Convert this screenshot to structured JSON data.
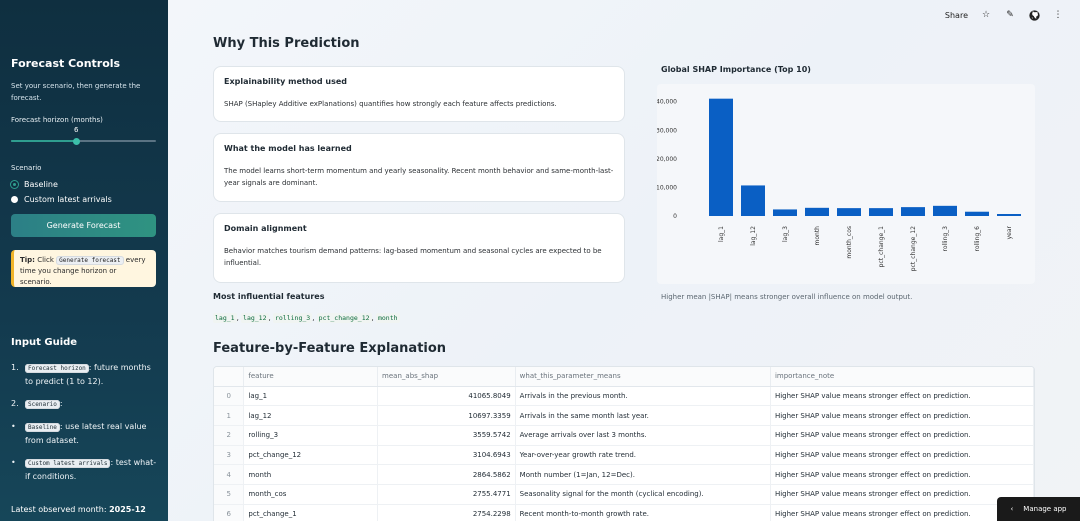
{
  "sidebar": {
    "title": "Forecast Controls",
    "subtitle": "Set your scenario, then generate the forecast.",
    "horizon_label": "Forecast horizon (months)",
    "horizon_value": "6",
    "horizon_min": 1,
    "horizon_max": 12,
    "scenario_label": "Scenario",
    "scenario_options": [
      "Baseline",
      "Custom latest arrivals"
    ],
    "generate_button": "Generate Forecast",
    "tip": {
      "prefix": "Tip:",
      "pre": " Click ",
      "code": "Generate forecast",
      "post": " every time you change horizon or scenario."
    },
    "guide_title": "Input Guide",
    "guide": [
      {
        "num": "1.",
        "code": "Forecast horizon",
        "text": ": future months to predict (1 to 12)."
      },
      {
        "num": "2.",
        "code": "Scenario",
        "text": ":"
      },
      {
        "num": "•",
        "code": "Baseline",
        "text": ": use latest real value from dataset."
      },
      {
        "num": "•",
        "code": "Custom latest arrivals",
        "text": ": test what-if conditions."
      }
    ],
    "latest_label": "Latest observed month:",
    "latest_value": "2025-12"
  },
  "topbar": {
    "share": "Share"
  },
  "main": {
    "section_title": "Why This Prediction",
    "cards": [
      {
        "title": "Explainability method used",
        "body": "SHAP (SHapley Additive exPlanations) quantifies how strongly each feature affects predictions."
      },
      {
        "title": "What the model has learned",
        "body": "The model learns short-term momentum and yearly seasonality. Recent month behavior and same-month-last-year signals are dominant."
      },
      {
        "title": "Domain alignment",
        "body": "Behavior matches tourism demand patterns: lag-based momentum and seasonal cycles are expected to be influential."
      }
    ],
    "most_influential_title": "Most influential features",
    "most_influential": [
      "lag_1",
      "lag_12",
      "rolling_3",
      "pct_change_12",
      "month"
    ],
    "chart_title": "Global SHAP Importance (Top 10)",
    "chart_caption": "Higher mean |SHAP| means stronger overall influence on model output.",
    "table_title": "Feature-by-Feature Explanation",
    "table": {
      "columns": [
        "",
        "feature",
        "mean_abs_shap",
        "what_this_parameter_means",
        "importance_note"
      ],
      "rows": [
        [
          "0",
          "lag_1",
          "41065.8049",
          "Arrivals in the previous month.",
          "Higher SHAP value means stronger effect on prediction."
        ],
        [
          "1",
          "lag_12",
          "10697.3359",
          "Arrivals in the same month last year.",
          "Higher SHAP value means stronger effect on prediction."
        ],
        [
          "2",
          "rolling_3",
          "3559.5742",
          "Average arrivals over last 3 months.",
          "Higher SHAP value means stronger effect on prediction."
        ],
        [
          "3",
          "pct_change_12",
          "3104.6943",
          "Year-over-year growth rate trend.",
          "Higher SHAP value means stronger effect on prediction."
        ],
        [
          "4",
          "month",
          "2864.5862",
          "Month number (1=Jan, 12=Dec).",
          "Higher SHAP value means stronger effect on prediction."
        ],
        [
          "5",
          "month_cos",
          "2755.4771",
          "Seasonality signal for the month (cyclical encoding).",
          "Higher SHAP value means stronger effect on prediction."
        ],
        [
          "6",
          "pct_change_1",
          "2754.2298",
          "Recent month-to-month growth rate.",
          "Higher SHAP value means stronger effect on prediction."
        ]
      ]
    }
  },
  "chart_data": {
    "type": "bar",
    "categories": [
      "lag_1",
      "lag_12",
      "lag_3",
      "month",
      "month_cos",
      "pct_change_1",
      "pct_change_12",
      "rolling_3",
      "rolling_6",
      "year"
    ],
    "values": [
      41065.8,
      10697.3,
      2300,
      2864.6,
      2755.5,
      2754.2,
      3104.7,
      3559.6,
      1500,
      700
    ],
    "yticks": [
      "0",
      "10,000",
      "20,000",
      "30,000",
      "40,000"
    ],
    "ylim": [
      0,
      42000
    ],
    "bar_color": "#0a5fc4",
    "title": "",
    "xlabel": "",
    "ylabel": ""
  },
  "manage_app": "Manage app"
}
